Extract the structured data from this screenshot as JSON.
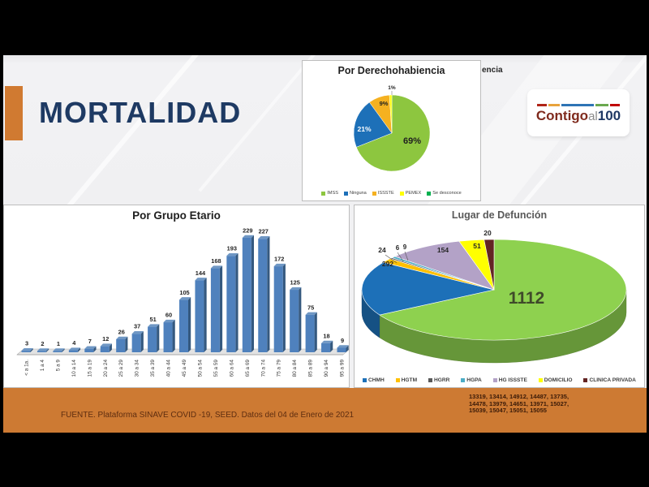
{
  "slide": {
    "title": "MORTALIDAD",
    "background_fragment": "encia",
    "logo": {
      "contigo": "Contigo",
      "al": "al",
      "hundred": "100"
    },
    "footer": {
      "source": "FUENTE. Plataforma SINAVE COVID -19, SEED. Datos del 04 de Enero de 2021",
      "numbers_lines": [
        "13319, 13414, 14912, 14487, 13735,",
        "14478, 13979, 14651, 13971, 15027,",
        "15039, 15047, 15051, 15055"
      ]
    },
    "colors": {
      "accent_orange": "#d07a31",
      "footer_orange": "#cd7a33",
      "title_navy": "#1e3a63"
    }
  },
  "chart_data": [
    {
      "id": "pie_derechohabiencia",
      "type": "pie",
      "title": "Por Derechohabiencia",
      "labels": [
        "IMSS",
        "Ninguna",
        "ISSSTE",
        "PEMEX",
        "Se desconoce"
      ],
      "values_pct": [
        69,
        21,
        9,
        1,
        0
      ],
      "colors": [
        "#8dc63f",
        "#1d70b8",
        "#f5b120",
        "#ffff00",
        "#00b050"
      ],
      "data_labels": [
        "69%",
        "21%",
        "9%",
        "1%"
      ],
      "legend_position": "bottom",
      "start_angle_deg": 0,
      "direction": "clockwise"
    },
    {
      "id": "bar_grupo_etario",
      "type": "bar",
      "title": "Por Grupo Etario",
      "categories": [
        "< a 1a.",
        "1 a 4",
        "5 a 9",
        "10 a 14",
        "15 a 19",
        "20 a 24",
        "25 a 29",
        "30 a 34",
        "35 a 39",
        "40 a 44",
        "45 a 49",
        "50 a 54",
        "55 a 59",
        "60 a 64",
        "65 a 69",
        "70 a 74",
        "75 a 79",
        "80 a 84",
        "85 a 89",
        "90 a 94",
        "95 a 99"
      ],
      "values": [
        3,
        2,
        1,
        4,
        7,
        12,
        26,
        37,
        51,
        60,
        105,
        144,
        168,
        193,
        229,
        227,
        172,
        125,
        75,
        18,
        9
      ],
      "bar_color": "#4f81bd",
      "bar_side_color": "#35597f",
      "bar_top_color": "#6f97c4",
      "value_labels": true,
      "grid": false,
      "ylim": [
        0,
        250
      ],
      "xlabel": "",
      "ylabel": ""
    },
    {
      "id": "pie_lugar_defuncion",
      "type": "pie",
      "style": "3d",
      "title": "Lugar de Defunción",
      "segments": [
        {
          "label": "",
          "value": 1112,
          "color": "#8ed14f"
        },
        {
          "label": "CHMH",
          "value": 292,
          "color": "#1d70b8"
        },
        {
          "label": "HGTM",
          "value": 24,
          "color": "#ffc000"
        },
        {
          "label": "HGRR",
          "value": 6,
          "color": "#595959"
        },
        {
          "label": "HGPA",
          "value": 9,
          "color": "#4bacc6"
        },
        {
          "label": "HG ISSSTE",
          "value": 154,
          "color": "#b3a2c7"
        },
        {
          "label": "DOMICILIO",
          "value": 51,
          "color": "#ffff00"
        },
        {
          "label": "CLINICA PRIVADA",
          "value": 20,
          "color": "#632423"
        }
      ],
      "legend": [
        "CHMH",
        "HGTM",
        "HGRR",
        "HGPA",
        "HG ISSSTE",
        "DOMICILIO",
        "CLINICA PRIVADA"
      ],
      "legend_position": "bottom",
      "start_angle_deg": 0,
      "direction": "clockwise"
    }
  ]
}
